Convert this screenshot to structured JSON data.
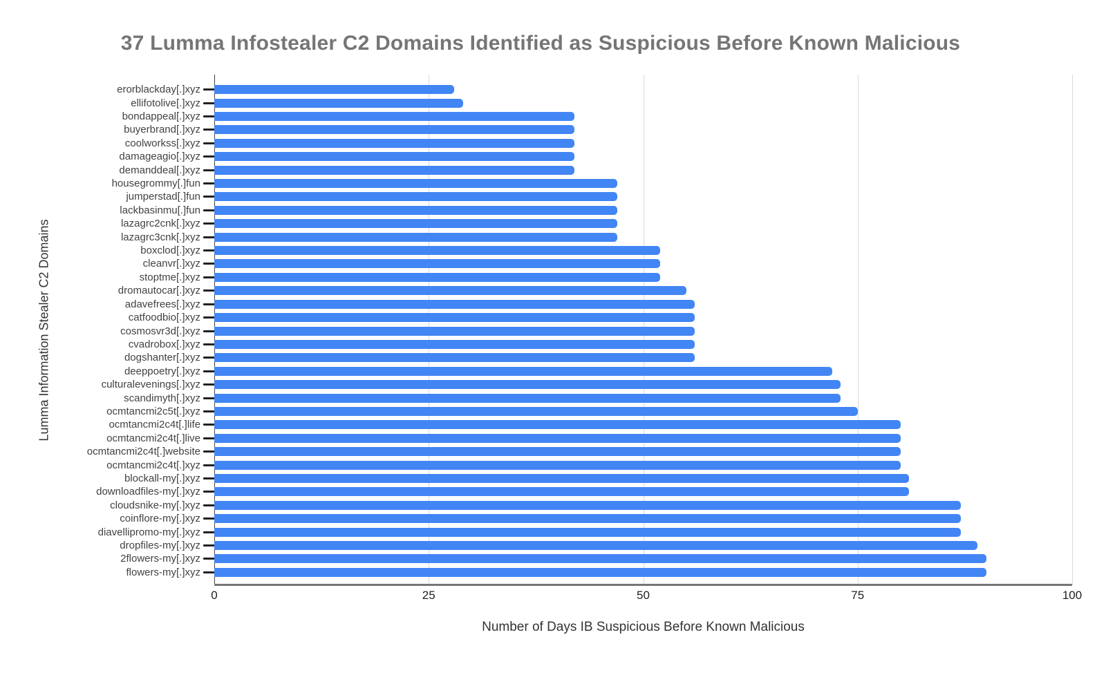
{
  "chart_data": {
    "type": "bar",
    "orientation": "horizontal",
    "title": "37 Lumma Infostealer C2 Domains Identified as Suspicious Before Known Malicious",
    "xlabel": "Number of Days IB Suspicious Before Known Malicious",
    "ylabel": "Lumma Information Stealer C2 Domains",
    "xlim": [
      0,
      100
    ],
    "x_ticks": [
      0,
      25,
      50,
      75,
      100
    ],
    "grid": "vertical-gridlines-on",
    "legend": "none",
    "bar_color": "#4285f4",
    "categories": [
      "erorblackday[.]xyz",
      "ellifotolive[.]xyz",
      "bondappeal[.]xyz",
      "buyerbrand[.]xyz",
      "coolworkss[.]xyz",
      "damageagio[.]xyz",
      "demanddeal[.]xyz",
      "housegrommy[.]fun",
      "jumperstad[.]fun",
      "lackbasinmu[.]fun",
      "lazagrc2cnk[.]xyz",
      "lazagrc3cnk[.]xyz",
      "boxclod[.]xyz",
      "cleanvr[.]xyz",
      "stoptme[.]xyz",
      "dromautocar[.]xyz",
      "adavefrees[.]xyz",
      "catfoodbio[.]xyz",
      "cosmosvr3d[.]xyz",
      "cvadrobox[.]xyz",
      "dogshanter[.]xyz",
      "deeppoetry[.]xyz",
      "culturalevenings[.]xyz",
      "scandimyth[.]xyz",
      "ocmtancmi2c5t[.]xyz",
      "ocmtancmi2c4t[.]life",
      "ocmtancmi2c4t[.]live",
      "ocmtancmi2c4t[.]website",
      "ocmtancmi2c4t[.]xyz",
      "blockall-my[.]xyz",
      "downloadfiles-my[.]xyz",
      "cloudsnike-my[.]xyz",
      "coinflore-my[.]xyz",
      "diavellipromo-my[.]xyz",
      "dropfiles-my[.]xyz",
      "2flowers-my[.]xyz",
      "flowers-my[.]xyz"
    ],
    "values": [
      28,
      29,
      42,
      42,
      42,
      42,
      42,
      47,
      47,
      47,
      47,
      47,
      52,
      52,
      52,
      55,
      56,
      56,
      56,
      56,
      56,
      72,
      73,
      73,
      75,
      80,
      80,
      80,
      80,
      81,
      81,
      87,
      87,
      87,
      89,
      90,
      90
    ]
  },
  "style": {
    "title_color": "#757575",
    "bar_color": "#4285f4",
    "gridline_color": "#d9d9d9",
    "axis_line_color": "#424242",
    "baseline_color": "#757575",
    "category_label_color": "#424242",
    "tick_label_color": "#212121",
    "background": "#ffffff"
  }
}
